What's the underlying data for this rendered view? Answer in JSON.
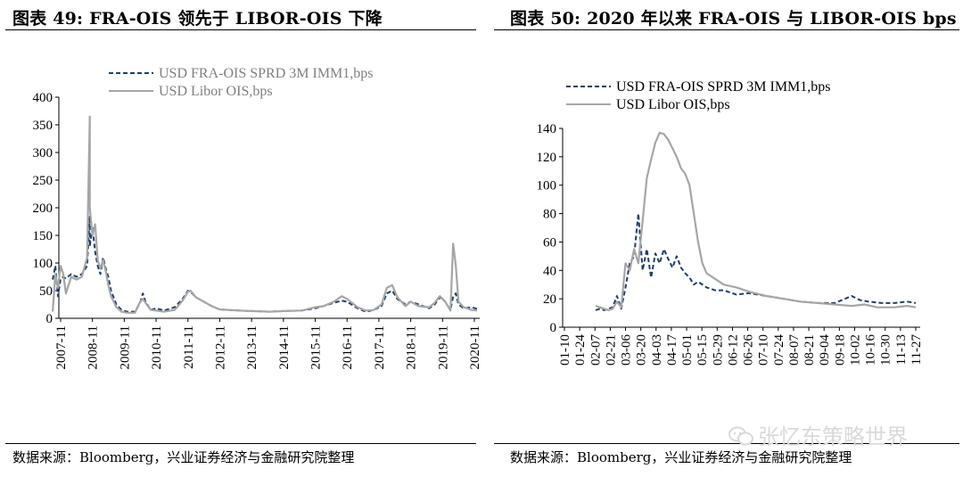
{
  "left": {
    "title": "图表 49:  FRA-OIS 领先于 LIBOR-OIS 下降",
    "source": "数据来源：Bloomberg，兴业证券经济与金融研究院整理",
    "chart_data": {
      "type": "line",
      "x_tick_labels": [
        "2007-11",
        "2008-11",
        "2009-11",
        "2010-11",
        "2011-11",
        "2012-11",
        "2013-11",
        "2014-11",
        "2015-11",
        "2016-11",
        "2017-11",
        "2018-11",
        "2019-11",
        "2020-11"
      ],
      "y_tick_labels": [
        "0",
        "50",
        "100",
        "150",
        "200",
        "250",
        "300",
        "350",
        "400"
      ],
      "ylim": [
        0,
        400
      ],
      "xlim": [
        "2007-08",
        "2021-01"
      ],
      "grid": false,
      "legend_position": "top",
      "series": [
        {
          "name": "USD FRA-OIS SPRD 3M IMM1,bps",
          "color": "#1f3f66",
          "style": "dashed",
          "points": [
            [
              "2007-08",
              70
            ],
            [
              "2007-09",
              95
            ],
            [
              "2007-10",
              40
            ],
            [
              "2007-11",
              72
            ],
            [
              "2007-12",
              75
            ],
            [
              "2008-01",
              72
            ],
            [
              "2008-03",
              80
            ],
            [
              "2008-05",
              75
            ],
            [
              "2008-07",
              80
            ],
            [
              "2008-09",
              95
            ],
            [
              "2008-10",
              185
            ],
            [
              "2008-10",
              130
            ],
            [
              "2008-11",
              165
            ],
            [
              "2008-12",
              120
            ],
            [
              "2009-01",
              95
            ],
            [
              "2009-02",
              80
            ],
            [
              "2009-03",
              110
            ],
            [
              "2009-04",
              90
            ],
            [
              "2009-05",
              75
            ],
            [
              "2009-06",
              50
            ],
            [
              "2009-08",
              25
            ],
            [
              "2009-10",
              15
            ],
            [
              "2009-12",
              12
            ],
            [
              "2010-03",
              12
            ],
            [
              "2010-05",
              28
            ],
            [
              "2010-06",
              45
            ],
            [
              "2010-07",
              30
            ],
            [
              "2010-09",
              15
            ],
            [
              "2010-11",
              18
            ],
            [
              "2011-02",
              14
            ],
            [
              "2011-06",
              20
            ],
            [
              "2011-09",
              35
            ],
            [
              "2011-11",
              50
            ],
            [
              "2011-12",
              48
            ],
            [
              "2012-02",
              38
            ],
            [
              "2012-05",
              30
            ],
            [
              "2012-08",
              22
            ],
            [
              "2012-11",
              16
            ],
            [
              "2013-06",
              14
            ],
            [
              "2013-11",
              13
            ],
            [
              "2014-06",
              12
            ],
            [
              "2014-11",
              13
            ],
            [
              "2015-06",
              14
            ],
            [
              "2015-11",
              18
            ],
            [
              "2016-02",
              22
            ],
            [
              "2016-06",
              28
            ],
            [
              "2016-09",
              32
            ],
            [
              "2016-11",
              30
            ],
            [
              "2017-03",
              18
            ],
            [
              "2017-06",
              12
            ],
            [
              "2017-09",
              15
            ],
            [
              "2017-12",
              22
            ],
            [
              "2018-02",
              45
            ],
            [
              "2018-04",
              50
            ],
            [
              "2018-06",
              35
            ],
            [
              "2018-09",
              25
            ],
            [
              "2018-11",
              30
            ],
            [
              "2019-02",
              25
            ],
            [
              "2019-06",
              18
            ],
            [
              "2019-08",
              25
            ],
            [
              "2019-10",
              38
            ],
            [
              "2019-12",
              30
            ],
            [
              "2020-02",
              15
            ],
            [
              "2020-03",
              40
            ],
            [
              "2020-04",
              45
            ],
            [
              "2020-05",
              25
            ],
            [
              "2020-07",
              18
            ],
            [
              "2020-10",
              20
            ],
            [
              "2020-12",
              17
            ]
          ]
        },
        {
          "name": "USD Libor OIS,bps",
          "color": "#a6a6a6",
          "style": "solid",
          "points": [
            [
              "2007-08",
              12
            ],
            [
              "2007-09",
              80
            ],
            [
              "2007-10",
              55
            ],
            [
              "2007-11",
              95
            ],
            [
              "2007-12",
              80
            ],
            [
              "2008-01",
              45
            ],
            [
              "2008-03",
              75
            ],
            [
              "2008-05",
              70
            ],
            [
              "2008-07",
              75
            ],
            [
              "2008-09",
              110
            ],
            [
              "2008-10",
              365
            ],
            [
              "2008-10",
              200
            ],
            [
              "2008-11",
              150
            ],
            [
              "2008-12",
              170
            ],
            [
              "2009-01",
              105
            ],
            [
              "2009-02",
              90
            ],
            [
              "2009-03",
              105
            ],
            [
              "2009-04",
              85
            ],
            [
              "2009-05",
              60
            ],
            [
              "2009-06",
              40
            ],
            [
              "2009-08",
              20
            ],
            [
              "2009-10",
              12
            ],
            [
              "2009-12",
              10
            ],
            [
              "2010-03",
              10
            ],
            [
              "2010-05",
              30
            ],
            [
              "2010-06",
              35
            ],
            [
              "2010-07",
              28
            ],
            [
              "2010-09",
              15
            ],
            [
              "2010-11",
              14
            ],
            [
              "2011-02",
              12
            ],
            [
              "2011-06",
              15
            ],
            [
              "2011-09",
              32
            ],
            [
              "2011-11",
              48
            ],
            [
              "2011-12",
              50
            ],
            [
              "2012-02",
              38
            ],
            [
              "2012-05",
              30
            ],
            [
              "2012-08",
              22
            ],
            [
              "2012-11",
              16
            ],
            [
              "2013-06",
              14
            ],
            [
              "2013-11",
              13
            ],
            [
              "2014-06",
              12
            ],
            [
              "2014-11",
              13
            ],
            [
              "2015-06",
              14
            ],
            [
              "2015-11",
              20
            ],
            [
              "2016-02",
              22
            ],
            [
              "2016-06",
              30
            ],
            [
              "2016-09",
              40
            ],
            [
              "2016-11",
              35
            ],
            [
              "2017-03",
              20
            ],
            [
              "2017-06",
              14
            ],
            [
              "2017-09",
              15
            ],
            [
              "2017-12",
              25
            ],
            [
              "2018-02",
              55
            ],
            [
              "2018-04",
              60
            ],
            [
              "2018-06",
              38
            ],
            [
              "2018-09",
              22
            ],
            [
              "2018-11",
              30
            ],
            [
              "2019-02",
              22
            ],
            [
              "2019-06",
              20
            ],
            [
              "2019-08",
              28
            ],
            [
              "2019-10",
              40
            ],
            [
              "2019-12",
              30
            ],
            [
              "2020-02",
              14
            ],
            [
              "2020-03",
              135
            ],
            [
              "2020-04",
              95
            ],
            [
              "2020-05",
              30
            ],
            [
              "2020-07",
              20
            ],
            [
              "2020-10",
              15
            ],
            [
              "2020-12",
              14
            ]
          ]
        }
      ]
    }
  },
  "right": {
    "title": "图表 50:  2020 年以来 FRA-OIS 与 LIBOR-OIS bps",
    "source": "数据来源：Bloomberg，兴业证券经济与金融研究院整理",
    "chart_data": {
      "type": "line",
      "x_tick_labels": [
        "01-10",
        "01-24",
        "02-07",
        "02-21",
        "03-06",
        "03-20",
        "04-03",
        "04-17",
        "05-01",
        "05-15",
        "05-29",
        "06-12",
        "06-26",
        "07-10",
        "07-24",
        "08-07",
        "08-21",
        "09-04",
        "09-18",
        "10-02",
        "10-16",
        "10-30",
        "11-13",
        "11-27"
      ],
      "y_tick_labels": [
        "0",
        "20",
        "40",
        "60",
        "80",
        "100",
        "120",
        "140"
      ],
      "ylim": [
        0,
        140
      ],
      "grid": false,
      "legend_position": "top",
      "series": [
        {
          "name": "USD FRA-OIS SPRD 3M IMM1,bps",
          "color": "#1f3f66",
          "style": "dashed",
          "points": [
            [
              0,
              12
            ],
            [
              1,
              13
            ],
            [
              2,
              12
            ],
            [
              3,
              13
            ],
            [
              4,
              14
            ],
            [
              5,
              22
            ],
            [
              6,
              13
            ],
            [
              7,
              28
            ],
            [
              8,
              45
            ],
            [
              9,
              50
            ],
            [
              10,
              80
            ],
            [
              11,
              40
            ],
            [
              12,
              55
            ],
            [
              13,
              35
            ],
            [
              14,
              52
            ],
            [
              15,
              45
            ],
            [
              16,
              55
            ],
            [
              17,
              48
            ],
            [
              18,
              42
            ],
            [
              19,
              50
            ],
            [
              20,
              42
            ],
            [
              21,
              38
            ],
            [
              22,
              35
            ],
            [
              23,
              30
            ],
            [
              24,
              32
            ],
            [
              26,
              28
            ],
            [
              28,
              26
            ],
            [
              30,
              26
            ],
            [
              33,
              23
            ],
            [
              36,
              24
            ],
            [
              40,
              22
            ],
            [
              44,
              20
            ],
            [
              48,
              18
            ],
            [
              52,
              17
            ],
            [
              56,
              17
            ],
            [
              60,
              22
            ],
            [
              62,
              19
            ],
            [
              64,
              18
            ],
            [
              67,
              17
            ],
            [
              70,
              17
            ],
            [
              73,
              18
            ],
            [
              75,
              17
            ]
          ]
        },
        {
          "name": "USD Libor OIS,bps",
          "color": "#a6a6a6",
          "style": "solid",
          "points": [
            [
              0,
              15
            ],
            [
              1,
              14
            ],
            [
              2,
              13
            ],
            [
              3,
              12
            ],
            [
              4,
              13
            ],
            [
              5,
              18
            ],
            [
              6,
              14
            ],
            [
              7,
              45
            ],
            [
              8,
              40
            ],
            [
              9,
              55
            ],
            [
              10,
              45
            ],
            [
              11,
              75
            ],
            [
              12,
              105
            ],
            [
              13,
              118
            ],
            [
              14,
              130
            ],
            [
              15,
              137
            ],
            [
              16,
              136
            ],
            [
              17,
              132
            ],
            [
              18,
              126
            ],
            [
              19,
              120
            ],
            [
              20,
              112
            ],
            [
              21,
              108
            ],
            [
              22,
              100
            ],
            [
              23,
              80
            ],
            [
              24,
              60
            ],
            [
              25,
              45
            ],
            [
              26,
              38
            ],
            [
              28,
              34
            ],
            [
              30,
              30
            ],
            [
              33,
              28
            ],
            [
              36,
              25
            ],
            [
              40,
              22
            ],
            [
              44,
              20
            ],
            [
              48,
              18
            ],
            [
              52,
              17
            ],
            [
              56,
              16
            ],
            [
              60,
              15
            ],
            [
              63,
              16
            ],
            [
              66,
              14
            ],
            [
              70,
              14
            ],
            [
              73,
              15
            ],
            [
              75,
              14
            ]
          ]
        }
      ]
    }
  },
  "watermark": {
    "text": "张忆东策略世界",
    "icon": "wechat-icon"
  }
}
